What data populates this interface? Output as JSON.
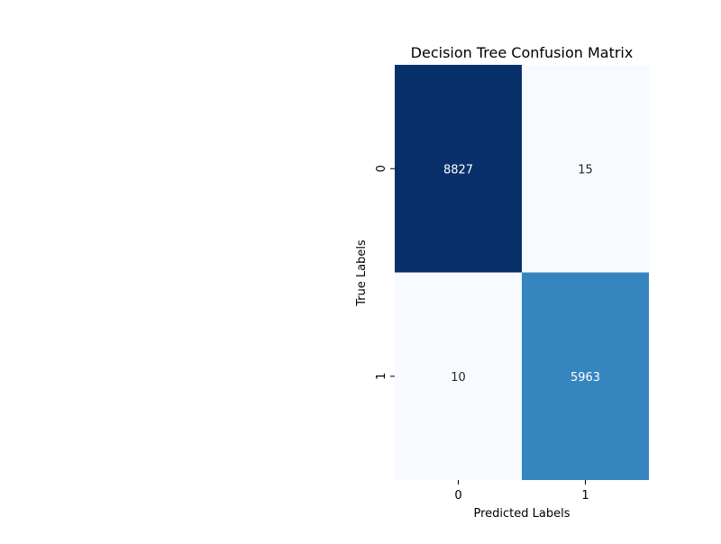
{
  "chart_data": {
    "type": "heatmap",
    "title": "Decision Tree Confusion Matrix",
    "xlabel": "Predicted Labels",
    "ylabel": "True Labels",
    "x_tick_labels": [
      "0",
      "1"
    ],
    "y_tick_labels": [
      "0",
      "1"
    ],
    "matrix": [
      [
        8827,
        15
      ],
      [
        10,
        5963
      ]
    ],
    "colormap": "Blues",
    "colorbar": false,
    "grid": false
  }
}
